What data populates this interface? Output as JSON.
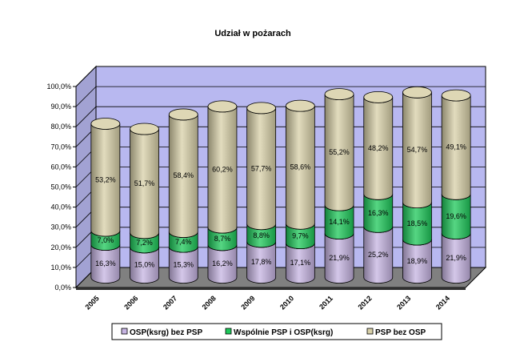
{
  "chart_data": {
    "type": "bar",
    "stacked": true,
    "style": "3d-cylinder",
    "title": "Udział w pożarach",
    "xlabel": "",
    "ylabel": "",
    "ylim": [
      0,
      100
    ],
    "y_ticks": [
      "0,0%",
      "10,0%",
      "20,0%",
      "30,0%",
      "40,0%",
      "50,0%",
      "60,0%",
      "70,0%",
      "80,0%",
      "90,0%",
      "100,0%"
    ],
    "categories": [
      "2005",
      "2006",
      "2007",
      "2008",
      "2009",
      "2010",
      "2011",
      "2012",
      "2013",
      "2014"
    ],
    "series": [
      {
        "name": "OSP(ksrg) bez PSP",
        "color": "#c6b4e2",
        "values": [
          16.3,
          15.0,
          15.3,
          16.2,
          17.8,
          17.1,
          21.9,
          25.2,
          18.9,
          21.9
        ],
        "labels": [
          "16,3%",
          "15,0%",
          "15,3%",
          "16,2%",
          "17,8%",
          "17,1%",
          "21,9%",
          "25,2%",
          "18,9%",
          "21,9%"
        ]
      },
      {
        "name": "Wspólnie PSP i OSP(ksrg)",
        "color": "#1ec85a",
        "values": [
          7.0,
          7.2,
          7.4,
          8.7,
          8.8,
          9.7,
          14.1,
          16.3,
          18.5,
          19.6
        ],
        "labels": [
          "7,0%",
          "7,2%",
          "7,4%",
          "8,7%",
          "8,8%",
          "9,7%",
          "14,1%",
          "16,3%",
          "18,5%",
          "19,6%"
        ]
      },
      {
        "name": "PSP bez OSP",
        "color": "#d8d0a8",
        "values": [
          53.2,
          51.7,
          58.4,
          60.2,
          57.7,
          58.6,
          55.2,
          48.2,
          54.7,
          49.1
        ],
        "labels": [
          "53,2%",
          "51,7%",
          "58,4%",
          "60,2%",
          "57,7%",
          "58,6%",
          "55,2%",
          "48,2%",
          "54,7%",
          "49,1%"
        ]
      }
    ],
    "legend_position": "bottom",
    "wall_color": "#b8b8f0",
    "floor_color": "#808080",
    "grid": true
  }
}
